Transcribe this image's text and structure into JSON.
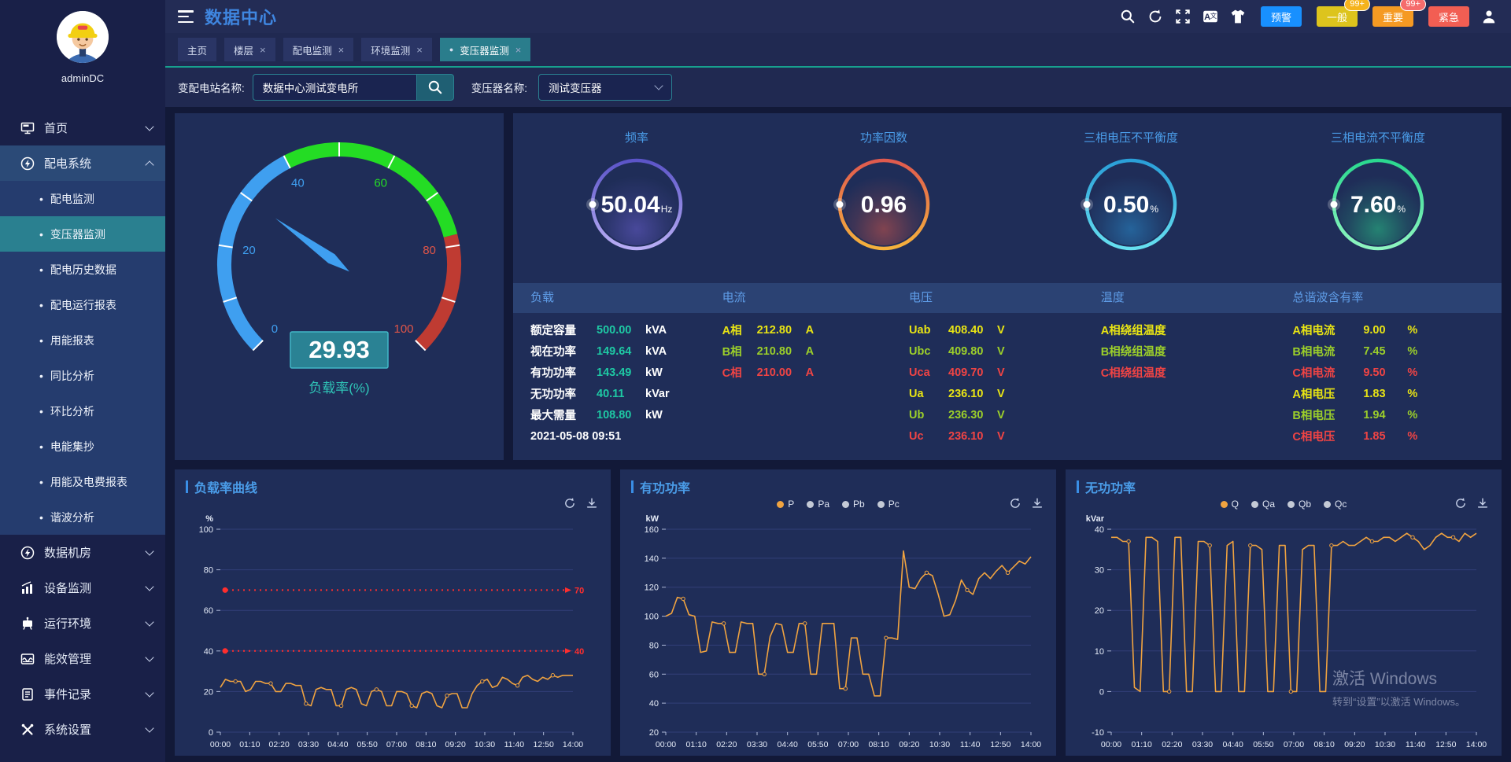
{
  "header": {
    "title": "数据中心",
    "icons": [
      "search-icon",
      "refresh-icon",
      "fullscreen-icon",
      "translate-icon",
      "theme-icon"
    ],
    "alarm_buttons": [
      {
        "id": "warning",
        "label": "预警",
        "color": "#1890ff",
        "badge": null,
        "badge_color": null
      },
      {
        "id": "normal",
        "label": "一般",
        "color": "#ddc41d",
        "badge": "99+",
        "badge_color": "#f5b31c"
      },
      {
        "id": "important",
        "label": "重要",
        "color": "#f59a23",
        "badge": "99+",
        "badge_color": "#f56c6c"
      },
      {
        "id": "urgent",
        "label": "紧急",
        "color": "#f25e53",
        "badge": null,
        "badge_color": null
      }
    ]
  },
  "tabs": [
    {
      "id": "home",
      "label": "主页",
      "closable": false,
      "active": false
    },
    {
      "id": "floor",
      "label": "楼层",
      "closable": true,
      "active": false
    },
    {
      "id": "power-monitor",
      "label": "配电监测",
      "closable": true,
      "active": false
    },
    {
      "id": "env-monitor",
      "label": "环境监测",
      "closable": true,
      "active": false
    },
    {
      "id": "transformer-monitor",
      "label": "变压器监测",
      "closable": true,
      "active": true
    }
  ],
  "filter": {
    "station_label": "变配电站名称:",
    "station_value": "数据中心测试变电所",
    "transformer_label": "变压器名称:",
    "transformer_value": "测试变压器"
  },
  "sidebar": {
    "username": "adminDC",
    "items": [
      {
        "id": "home",
        "type": "main",
        "label": "首页",
        "icon": "monitor-icon",
        "chevron": "down"
      },
      {
        "id": "power-system",
        "type": "main",
        "label": "配电系统",
        "icon": "bolt-icon",
        "chevron": "up",
        "expanded": true
      },
      {
        "id": "power-monitor",
        "type": "sub",
        "label": "配电监测"
      },
      {
        "id": "transformer-monitor",
        "type": "sub",
        "label": "变压器监测",
        "active": true
      },
      {
        "id": "power-history",
        "type": "sub",
        "label": "配电历史数据"
      },
      {
        "id": "power-report",
        "type": "sub",
        "label": "配电运行报表"
      },
      {
        "id": "energy-report",
        "type": "sub",
        "label": "用能报表"
      },
      {
        "id": "yoy-analysis",
        "type": "sub",
        "label": "同比分析"
      },
      {
        "id": "mom-analysis",
        "type": "sub",
        "label": "环比分析"
      },
      {
        "id": "energy-meter-read",
        "type": "sub",
        "label": "电能集抄"
      },
      {
        "id": "energy-fee-report",
        "type": "sub",
        "label": "用能及电费报表"
      },
      {
        "id": "harmonic-analysis",
        "type": "sub",
        "label": "谐波分析"
      },
      {
        "id": "data-room",
        "type": "main",
        "label": "数据机房",
        "icon": "bolt-icon",
        "chevron": "down"
      },
      {
        "id": "device-monitor",
        "type": "main",
        "label": "设备监测",
        "icon": "chart-icon",
        "chevron": "down"
      },
      {
        "id": "runtime-env",
        "type": "main",
        "label": "运行环境",
        "icon": "device-icon",
        "chevron": "down"
      },
      {
        "id": "energy-efficiency",
        "type": "main",
        "label": "能效管理",
        "icon": "wave-icon",
        "chevron": "down"
      },
      {
        "id": "event-log",
        "type": "main",
        "label": "事件记录",
        "icon": "doc-icon",
        "chevron": "down"
      },
      {
        "id": "system-settings",
        "type": "main",
        "label": "系统设置",
        "icon": "tools-icon",
        "chevron": "down"
      }
    ]
  },
  "load_gauge": {
    "value": "29.93",
    "value_num": 29.93,
    "label": "负载率(%)",
    "min": 0,
    "max": 100,
    "needle_color": "#3f9ff0",
    "box_bg": "#2a8294",
    "box_border": "#42b8c8",
    "segments": [
      {
        "to": 40,
        "color": "#3f9ff0"
      },
      {
        "to": 78,
        "color": "#24dc24"
      },
      {
        "to": 100,
        "color": "#bf3b32"
      }
    ],
    "tick_labels": [
      {
        "v": 0,
        "color": "#3f9ff0"
      },
      {
        "v": 20,
        "color": "#3f9ff0"
      },
      {
        "v": 40,
        "color": "#3f9ff0"
      },
      {
        "v": 60,
        "color": "#24dc24"
      },
      {
        "v": 80,
        "color": "#e05548"
      },
      {
        "v": 100,
        "color": "#e05548"
      }
    ]
  },
  "ring_gauges": [
    {
      "id": "frequency",
      "title": "频率",
      "value": "50.04",
      "unit": "Hz",
      "ring_from": "#5b54c8",
      "ring_to": "#b9aef5",
      "glow": "#6a5fd0"
    },
    {
      "id": "power-factor",
      "title": "功率因数",
      "value": "0.96",
      "unit": "",
      "ring_from": "#e05a4e",
      "ring_to": "#f5b23c",
      "glow": "#d0564a"
    },
    {
      "id": "voltage-unbalance",
      "title": "三相电压不平衡度",
      "value": "0.50",
      "unit": "%",
      "ring_from": "#2a9fd8",
      "ring_to": "#66e0f0",
      "glow": "#2a8fd0"
    },
    {
      "id": "current-unbalance",
      "title": "三相电流不平衡度",
      "value": "7.60",
      "unit": "%",
      "ring_from": "#2ad88f",
      "ring_to": "#8ff5c0",
      "glow": "#2ac888"
    }
  ],
  "table": {
    "columns": [
      {
        "header": "负载",
        "rows": [
          {
            "label": "额定容量",
            "value": "500.00",
            "unit": "kVA",
            "tone": "teal"
          },
          {
            "label": "视在功率",
            "value": "149.64",
            "unit": "kVA",
            "tone": "teal"
          },
          {
            "label": "有功功率",
            "value": "143.49",
            "unit": "kW",
            "tone": "teal"
          },
          {
            "label": "无功功率",
            "value": "40.11",
            "unit": "kVar",
            "tone": "teal"
          },
          {
            "label": "最大需量",
            "value": "108.80",
            "unit": "kW",
            "tone": "teal"
          },
          {
            "label": "2021-05-08 09:51",
            "value": "",
            "unit": "",
            "tone": "plain"
          }
        ]
      },
      {
        "header": "电流",
        "rows": [
          {
            "label": "A相",
            "value": "212.80",
            "unit": "A",
            "tone": "yellow"
          },
          {
            "label": "B相",
            "value": "210.80",
            "unit": "A",
            "tone": "green"
          },
          {
            "label": "C相",
            "value": "210.00",
            "unit": "A",
            "tone": "red"
          }
        ]
      },
      {
        "header": "电压",
        "rows": [
          {
            "label": "Uab",
            "value": "408.40",
            "unit": "V",
            "tone": "yellow"
          },
          {
            "label": "Ubc",
            "value": "409.80",
            "unit": "V",
            "tone": "green"
          },
          {
            "label": "Uca",
            "value": "409.70",
            "unit": "V",
            "tone": "red"
          },
          {
            "label": "Ua",
            "value": "236.10",
            "unit": "V",
            "tone": "yellow"
          },
          {
            "label": "Ub",
            "value": "236.30",
            "unit": "V",
            "tone": "green"
          },
          {
            "label": "Uc",
            "value": "236.10",
            "unit": "V",
            "tone": "red"
          }
        ]
      },
      {
        "header": "温度",
        "rows": [
          {
            "label": "A相绕组温度",
            "value": "",
            "unit": "",
            "tone": "yellow"
          },
          {
            "label": "B相绕组温度",
            "value": "",
            "unit": "",
            "tone": "green"
          },
          {
            "label": "C相绕组温度",
            "value": "",
            "unit": "",
            "tone": "red"
          }
        ]
      },
      {
        "header": "总谐波含有率",
        "rows": [
          {
            "label": "A相电流",
            "value": "9.00",
            "unit": "%",
            "tone": "yellow"
          },
          {
            "label": "B相电流",
            "value": "7.45",
            "unit": "%",
            "tone": "green"
          },
          {
            "label": "C相电流",
            "value": "9.50",
            "unit": "%",
            "tone": "red"
          },
          {
            "label": "A相电压",
            "value": "1.83",
            "unit": "%",
            "tone": "yellow"
          },
          {
            "label": "B相电压",
            "value": "1.94",
            "unit": "%",
            "tone": "green"
          },
          {
            "label": "C相电压",
            "value": "1.85",
            "unit": "%",
            "tone": "red"
          }
        ]
      }
    ]
  },
  "chart_data": [
    {
      "type": "line",
      "title": "负载率曲线",
      "unit": "%",
      "y_min": 0,
      "y_max": 100,
      "y_ticks": [
        0,
        20,
        40,
        60,
        80,
        100
      ],
      "x_labels": [
        "00:00",
        "01:10",
        "02:20",
        "03:30",
        "04:40",
        "05:50",
        "07:00",
        "08:10",
        "09:20",
        "10:30",
        "11:40",
        "12:50",
        "14:00"
      ],
      "legend": [],
      "ref_lines": [
        {
          "value": 70,
          "label": "70"
        },
        {
          "value": 40,
          "label": "40"
        }
      ],
      "series": [
        {
          "name": "负载率",
          "color": "#f0a340",
          "values": [
            22,
            26,
            25,
            25,
            25,
            20,
            21,
            25,
            25,
            24,
            24,
            20,
            20,
            24,
            24,
            23,
            23,
            14,
            13,
            21,
            22,
            21,
            21,
            13,
            13,
            21,
            22,
            21,
            14,
            13,
            20,
            21,
            20,
            13,
            13,
            20,
            20,
            19,
            13,
            12,
            19,
            20,
            19,
            13,
            12,
            18,
            19,
            19,
            12,
            12,
            19,
            23,
            25,
            26,
            22,
            23,
            27,
            26,
            24,
            23,
            27,
            28,
            26,
            25,
            27,
            26,
            28,
            27,
            28,
            28,
            28
          ]
        }
      ]
    },
    {
      "type": "line",
      "title": "有功功率",
      "unit": "kW",
      "y_min": 20,
      "y_max": 160,
      "y_ticks": [
        20,
        40,
        60,
        80,
        100,
        120,
        140,
        160
      ],
      "x_labels": [
        "00:00",
        "01:10",
        "02:20",
        "03:30",
        "04:40",
        "05:50",
        "07:00",
        "08:10",
        "09:20",
        "10:30",
        "11:40",
        "12:50",
        "14:00"
      ],
      "legend": [
        {
          "label": "P",
          "color": "#f0a340",
          "active": true
        },
        {
          "label": "Pa",
          "color": "#c4cad6",
          "active": false
        },
        {
          "label": "Pb",
          "color": "#c4cad6",
          "active": false
        },
        {
          "label": "Pc",
          "color": "#c4cad6",
          "active": false
        }
      ],
      "ref_lines": [],
      "series": [
        {
          "name": "P",
          "color": "#f0a340",
          "values": [
            100,
            102,
            113,
            112,
            101,
            100,
            75,
            76,
            96,
            95,
            95,
            75,
            75,
            96,
            95,
            95,
            60,
            60,
            86,
            95,
            94,
            75,
            75,
            95,
            95,
            60,
            60,
            95,
            95,
            95,
            50,
            50,
            85,
            85,
            60,
            60,
            45,
            45,
            85,
            85,
            84,
            145,
            120,
            119,
            126,
            130,
            128,
            115,
            100,
            101,
            111,
            125,
            118,
            115,
            126,
            130,
            126,
            131,
            135,
            130,
            134,
            138,
            136,
            141
          ]
        }
      ]
    },
    {
      "type": "line",
      "title": "无功功率",
      "unit": "kVar",
      "y_min": -10,
      "y_max": 40,
      "y_ticks": [
        -10,
        0,
        10,
        20,
        30,
        40
      ],
      "x_labels": [
        "00:00",
        "01:10",
        "02:20",
        "03:30",
        "04:40",
        "05:50",
        "07:00",
        "08:10",
        "09:20",
        "10:30",
        "11:40",
        "12:50",
        "14:00"
      ],
      "legend": [
        {
          "label": "Q",
          "color": "#f0a340",
          "active": true
        },
        {
          "label": "Qa",
          "color": "#c4cad6",
          "active": false
        },
        {
          "label": "Qb",
          "color": "#c4cad6",
          "active": false
        },
        {
          "label": "Qc",
          "color": "#c4cad6",
          "active": false
        }
      ],
      "ref_lines": [],
      "series": [
        {
          "name": "Q",
          "color": "#f0a340",
          "values": [
            38,
            38,
            37,
            37,
            1,
            0,
            38,
            38,
            37,
            0,
            0,
            38,
            38,
            0,
            0,
            37,
            37,
            36,
            0,
            0,
            36,
            37,
            0,
            0,
            36,
            36,
            35,
            0,
            0,
            36,
            36,
            0,
            0,
            35,
            36,
            36,
            0,
            0,
            36,
            36,
            37,
            36,
            36,
            37,
            38,
            37,
            37,
            38,
            38,
            37,
            38,
            39,
            38,
            37,
            35,
            36,
            38,
            39,
            38,
            38,
            37,
            39,
            38,
            39
          ]
        }
      ]
    }
  ],
  "watermark": {
    "line1": "激活 Windows",
    "line2": "转到“设置”以激活 Windows。"
  }
}
